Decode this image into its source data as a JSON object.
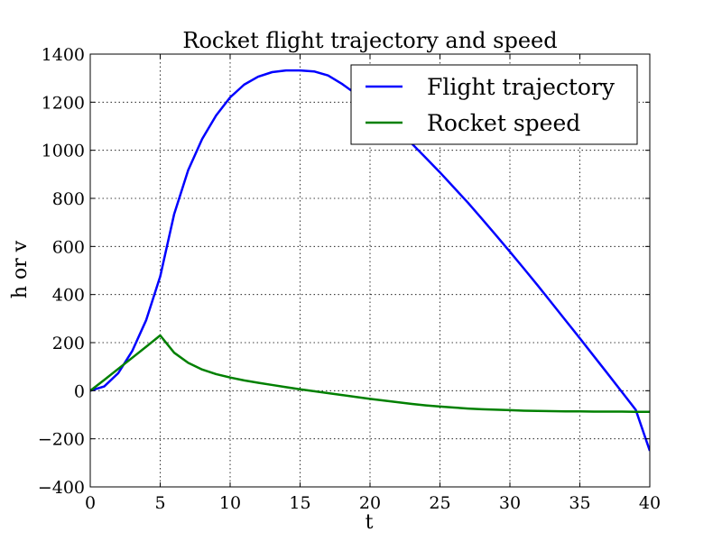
{
  "chart_data": {
    "type": "line",
    "title": "Rocket flight trajectory and speed",
    "xlabel": "t",
    "ylabel": "h or v",
    "xlim": [
      0,
      40
    ],
    "ylim": [
      -400,
      1400
    ],
    "xticks": [
      0,
      5,
      10,
      15,
      20,
      25,
      30,
      35,
      40
    ],
    "yticks": [
      -400,
      -200,
      0,
      200,
      400,
      600,
      800,
      1000,
      1200,
      1400
    ],
    "xtick_labels": [
      "0",
      "5",
      "10",
      "15",
      "20",
      "25",
      "30",
      "35",
      "40"
    ],
    "ytick_labels": [
      "−400",
      "−200",
      "0",
      "200",
      "400",
      "600",
      "800",
      "1000",
      "1200",
      "1400"
    ],
    "grid": true,
    "legend_position": "top-right",
    "series": [
      {
        "name": "Flight trajectory",
        "color": "#0000ff",
        "x": [
          0,
          1,
          2,
          3,
          4,
          5,
          6,
          7,
          8,
          9,
          10,
          11,
          12,
          13,
          14,
          15,
          16,
          17,
          18,
          19,
          20,
          21,
          22,
          23,
          24,
          25,
          26,
          27,
          28,
          29,
          30,
          31,
          32,
          33,
          34,
          35,
          36,
          37,
          38,
          39,
          40
        ],
        "y": [
          0,
          18,
          73,
          165,
          294,
          475,
          735,
          917,
          1047,
          1145,
          1220,
          1273,
          1306,
          1325,
          1332,
          1332,
          1328,
          1311,
          1276,
          1234,
          1189,
          1138,
          1084,
          1027,
          968,
          908,
          845,
          782,
          715,
          647,
          578,
          508,
          437,
          364,
          291,
          218,
          144,
          70,
          -5,
          -80,
          -250
        ]
      },
      {
        "name": "Rocket speed",
        "color": "#008000",
        "x": [
          0,
          1,
          2,
          3,
          4,
          5,
          6,
          7,
          8,
          9,
          10,
          11,
          12,
          13,
          14,
          15,
          16,
          17,
          18,
          19,
          20,
          21,
          22,
          23,
          24,
          25,
          26,
          27,
          28,
          29,
          30,
          31,
          32,
          33,
          34,
          35,
          36,
          37,
          38,
          39,
          40
        ],
        "y": [
          0,
          45,
          91,
          137,
          183,
          230,
          158,
          116,
          88,
          69,
          55,
          43,
          33,
          24,
          15,
          6,
          -2,
          -10,
          -18,
          -26,
          -34,
          -41,
          -48,
          -55,
          -61,
          -66,
          -70,
          -74,
          -77,
          -79,
          -81,
          -83,
          -84,
          -85,
          -86,
          -86,
          -87,
          -87,
          -87,
          -88,
          -88
        ]
      }
    ]
  }
}
